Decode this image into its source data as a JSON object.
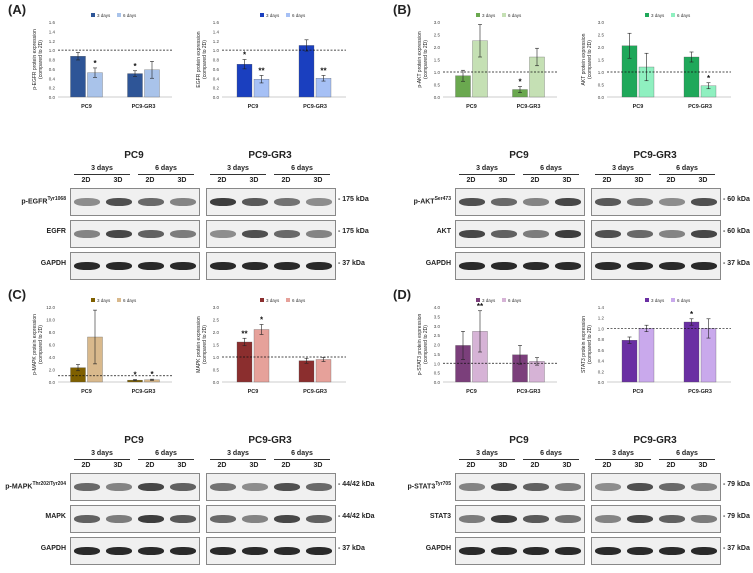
{
  "panels": [
    {
      "id": "A",
      "label": "(A)",
      "charts": [
        {
          "type": "bar",
          "ylabel": "p-EGFR protein expression\n(compared to 2D)",
          "ylim": [
            0,
            1.6
          ],
          "categories": [
            "PC9",
            "PC9-GR3"
          ],
          "legend": [
            "3 days",
            "6 days"
          ],
          "colors": [
            "#2e5597",
            "#a9c3ea"
          ],
          "series": [
            {
              "name": "3 days",
              "values": [
                0.87,
                0.5
              ],
              "err": [
                0.08,
                0.06
              ],
              "sig": [
                "",
                "*"
              ]
            },
            {
              "name": "6 days",
              "values": [
                0.52,
                0.58
              ],
              "err": [
                0.1,
                0.18
              ],
              "sig": [
                "*",
                ""
              ]
            }
          ],
          "refline": 1
        },
        {
          "type": "bar",
          "ylabel": "EGFR protein expression\n(compared to 2D)",
          "ylim": [
            0,
            1.6
          ],
          "categories": [
            "PC9",
            "PC9-GR3"
          ],
          "legend": [
            "3 days",
            "6 days"
          ],
          "colors": [
            "#1a3fbf",
            "#a6c0f5"
          ],
          "series": [
            {
              "name": "3 days",
              "values": [
                0.7,
                1.1
              ],
              "err": [
                0.1,
                0.12
              ],
              "sig": [
                "*",
                ""
              ]
            },
            {
              "name": "6 days",
              "values": [
                0.38,
                0.4
              ],
              "err": [
                0.08,
                0.06
              ],
              "sig": [
                "**",
                "**"
              ]
            }
          ],
          "refline": 1
        }
      ],
      "blot": {
        "groups": [
          "PC9",
          "PC9-GR3"
        ],
        "days": [
          "3 days",
          "6 days"
        ],
        "lanes": [
          "2D",
          "3D"
        ],
        "rows": [
          {
            "label": "p-EGFR",
            "sup": "Tyr1068",
            "kda": "- 175 kDa"
          },
          {
            "label": "EGFR",
            "sup": "",
            "kda": "- 175 kDa"
          },
          {
            "label": "GAPDH",
            "sup": "",
            "kda": "- 37 kDa"
          }
        ]
      }
    },
    {
      "id": "B",
      "label": "(B)",
      "charts": [
        {
          "type": "bar",
          "ylabel": "p-AKT protein expression\n(compared to 2D)",
          "ylim": [
            0,
            3.0
          ],
          "categories": [
            "PC9",
            "PC9-GR3"
          ],
          "legend": [
            "3 days",
            "6 days"
          ],
          "colors": [
            "#6aa84f",
            "#c5e0b4"
          ],
          "series": [
            {
              "name": "3 days",
              "values": [
                0.85,
                0.3
              ],
              "err": [
                0.22,
                0.12
              ],
              "sig": [
                "",
                "*"
              ]
            },
            {
              "name": "6 days",
              "values": [
                2.25,
                1.6
              ],
              "err": [
                0.65,
                0.35
              ],
              "sig": [
                "",
                ""
              ]
            }
          ],
          "refline": 1
        },
        {
          "type": "bar",
          "ylabel": "AKT protein expression\n(compared to 2D)",
          "ylim": [
            0,
            3.0
          ],
          "categories": [
            "PC9",
            "PC9-GR3"
          ],
          "legend": [
            "3 days",
            "6 days"
          ],
          "colors": [
            "#1fa85a",
            "#8ff0c0"
          ],
          "series": [
            {
              "name": "3 days",
              "values": [
                2.05,
                1.6
              ],
              "err": [
                0.5,
                0.2
              ],
              "sig": [
                "",
                ""
              ]
            },
            {
              "name": "6 days",
              "values": [
                1.2,
                0.45
              ],
              "err": [
                0.55,
                0.12
              ],
              "sig": [
                "",
                "*"
              ]
            }
          ],
          "refline": 1
        }
      ],
      "blot": {
        "groups": [
          "PC9",
          "PC9-GR3"
        ],
        "days": [
          "3 days",
          "6 days"
        ],
        "lanes": [
          "2D",
          "3D"
        ],
        "rows": [
          {
            "label": "p-AKT",
            "sup": "Ser473",
            "kda": "- 60 kDa"
          },
          {
            "label": "AKT",
            "sup": "",
            "kda": "- 60 kDa"
          },
          {
            "label": "GAPDH",
            "sup": "",
            "kda": "- 37 kDa"
          }
        ]
      }
    },
    {
      "id": "C",
      "label": "(C)",
      "charts": [
        {
          "type": "bar",
          "ylabel": "p-MAPK protein expression\n(compared to 2D)",
          "ylim": [
            0,
            12.0
          ],
          "categories": [
            "PC9",
            "PC9-GR3"
          ],
          "legend": [
            "3 days",
            "6 days"
          ],
          "colors": [
            "#7f6000",
            "#d9b98c"
          ],
          "series": [
            {
              "name": "3 days",
              "values": [
                2.3,
                0.3
              ],
              "err": [
                0.5,
                0.1
              ],
              "sig": [
                "",
                "*"
              ]
            },
            {
              "name": "6 days",
              "values": [
                7.2,
                0.35
              ],
              "err": [
                4.3,
                0.1
              ],
              "sig": [
                "",
                "*"
              ]
            }
          ],
          "refline": 1
        },
        {
          "type": "bar",
          "ylabel": "MAPK protein expression\n(compared to 2D)",
          "ylim": [
            0,
            3.0
          ],
          "categories": [
            "PC9",
            "PC9-GR3"
          ],
          "legend": [
            "3 days",
            "6 days"
          ],
          "colors": [
            "#8b2e2e",
            "#e6a19a"
          ],
          "series": [
            {
              "name": "3 days",
              "values": [
                1.6,
                0.85
              ],
              "err": [
                0.15,
                0.1
              ],
              "sig": [
                "**",
                ""
              ]
            },
            {
              "name": "6 days",
              "values": [
                2.1,
                0.9
              ],
              "err": [
                0.2,
                0.08
              ],
              "sig": [
                "*",
                ""
              ]
            }
          ],
          "refline": 1
        }
      ],
      "blot": {
        "groups": [
          "PC9",
          "PC9-GR3"
        ],
        "days": [
          "3 days",
          "6 days"
        ],
        "lanes": [
          "2D",
          "3D"
        ],
        "rows": [
          {
            "label": "p-MAPK",
            "sup": "Thr202/Tyr204",
            "kda": "- 44/42 kDa"
          },
          {
            "label": "MAPK",
            "sup": "",
            "kda": "- 44/42 kDa"
          },
          {
            "label": "GAPDH",
            "sup": "",
            "kda": "- 37 kDa"
          }
        ]
      }
    },
    {
      "id": "D",
      "label": "(D)",
      "charts": [
        {
          "type": "bar",
          "ylabel": "p-STAT3 protein expression\n(compared to 2D)",
          "ylim": [
            0,
            4.0
          ],
          "categories": [
            "PC9",
            "PC9-GR3"
          ],
          "legend": [
            "3 days",
            "6 days"
          ],
          "colors": [
            "#7b3f7b",
            "#d6b3d6"
          ],
          "series": [
            {
              "name": "3 days",
              "values": [
                1.95,
                1.45
              ],
              "err": [
                0.75,
                0.5
              ],
              "sig": [
                "",
                ""
              ]
            },
            {
              "name": "6 days",
              "values": [
                2.7,
                1.1
              ],
              "err": [
                1.1,
                0.2
              ],
              "sig": [
                "**",
                ""
              ]
            }
          ],
          "refline": 1
        },
        {
          "type": "bar",
          "ylabel": "STAT3 protein expression\n(compared to 2D)",
          "ylim": [
            0,
            1.4
          ],
          "categories": [
            "PC9",
            "PC9-GR3"
          ],
          "legend": [
            "3 days",
            "6 days"
          ],
          "colors": [
            "#6a2fa3",
            "#c9a9ec"
          ],
          "series": [
            {
              "name": "3 days",
              "values": [
                0.78,
                1.12
              ],
              "err": [
                0.06,
                0.06
              ],
              "sig": [
                "",
                "*"
              ]
            },
            {
              "name": "6 days",
              "values": [
                1.0,
                1.0
              ],
              "err": [
                0.06,
                0.18
              ],
              "sig": [
                "",
                ""
              ]
            }
          ],
          "refline": 1
        }
      ],
      "blot": {
        "groups": [
          "PC9",
          "PC9-GR3"
        ],
        "days": [
          "3 days",
          "6 days"
        ],
        "lanes": [
          "2D",
          "3D"
        ],
        "rows": [
          {
            "label": "p-STAT3",
            "sup": "Tyr705",
            "kda": "- 79 kDa"
          },
          {
            "label": "STAT3",
            "sup": "",
            "kda": "- 79 kDa"
          },
          {
            "label": "GAPDH",
            "sup": "",
            "kda": "- 37 kDa"
          }
        ]
      }
    }
  ]
}
